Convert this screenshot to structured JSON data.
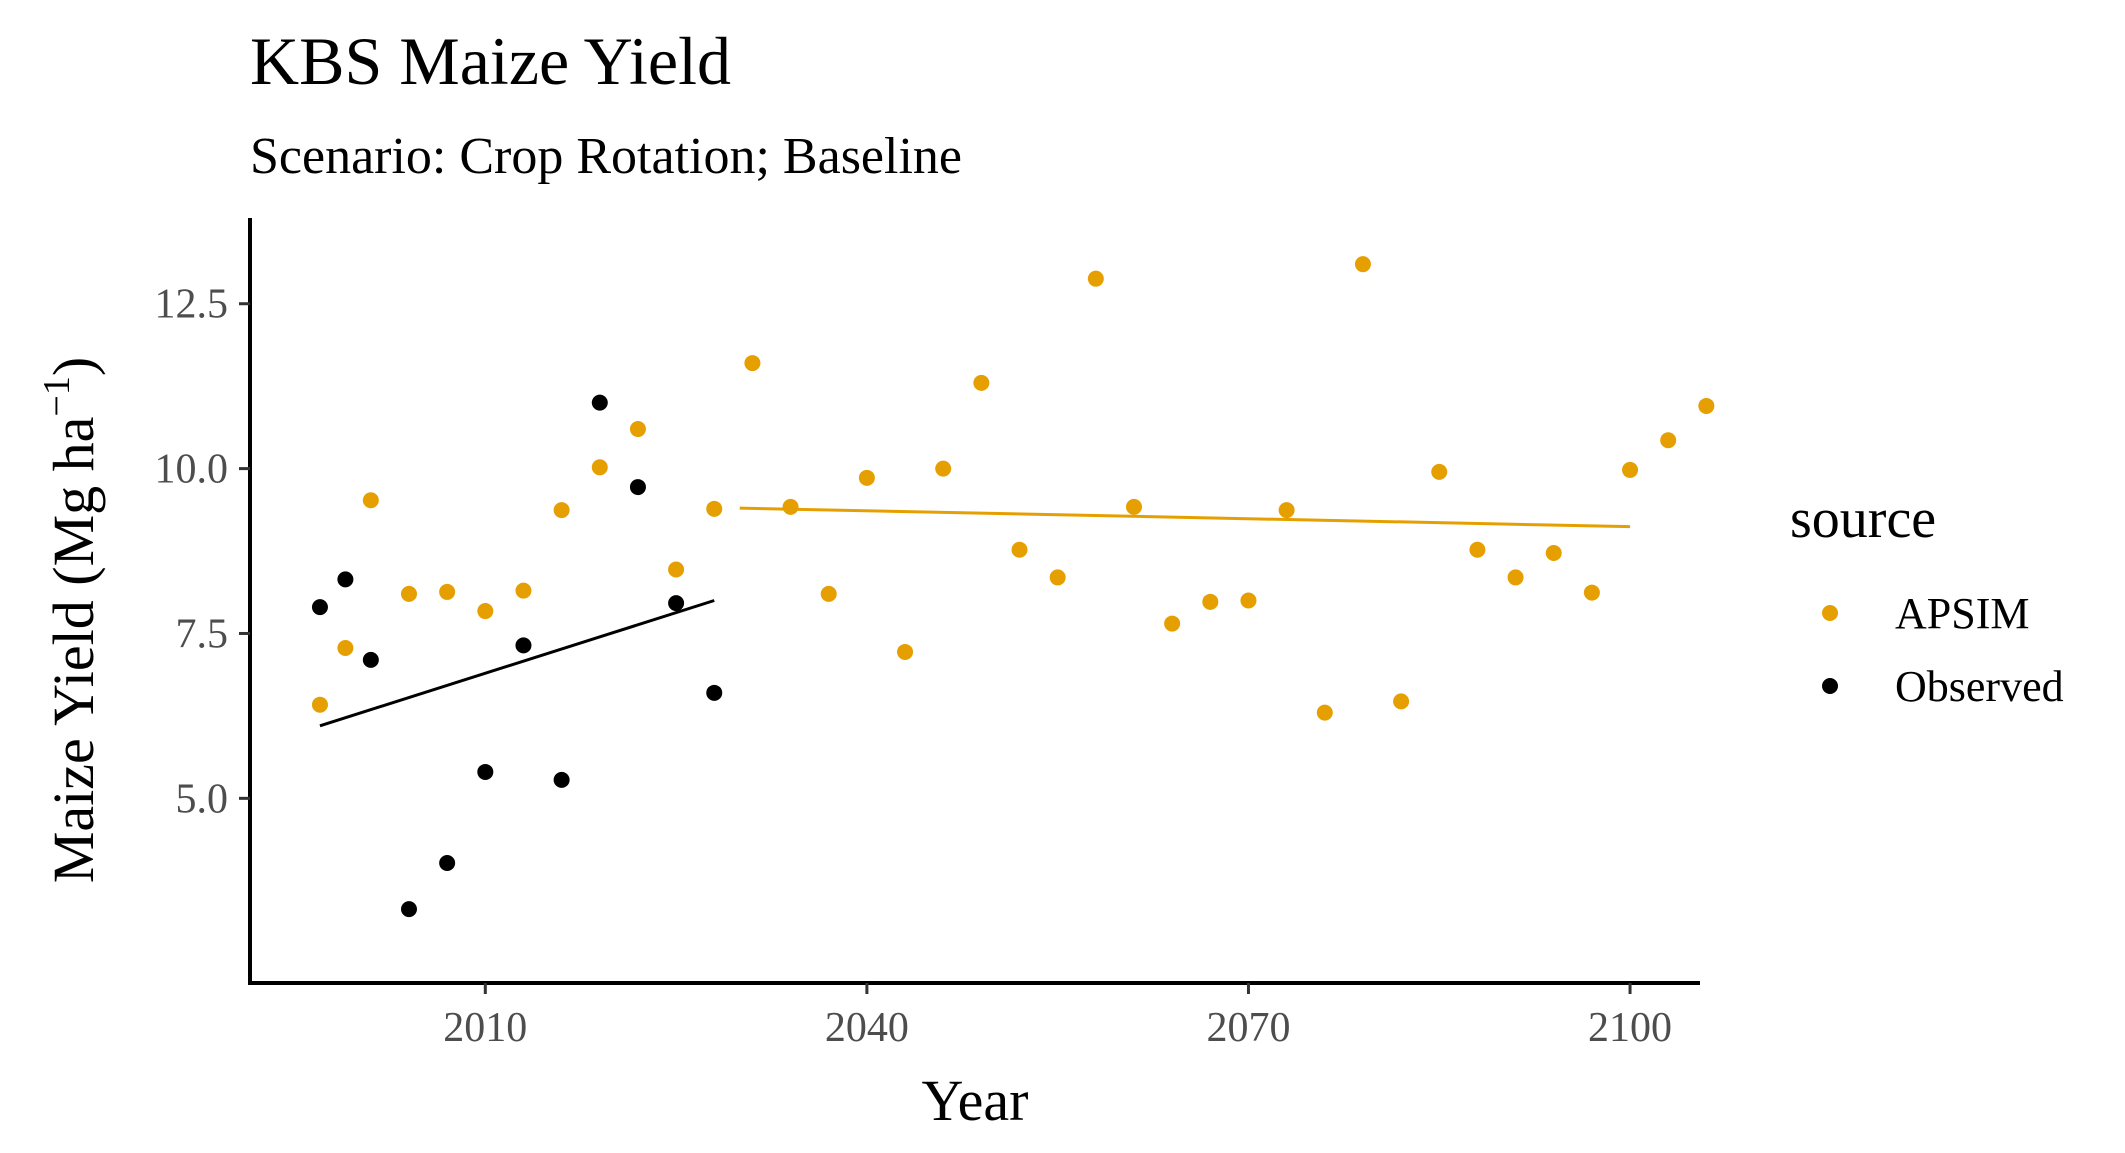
{
  "chart_data": {
    "type": "scatter",
    "title": "KBS Maize Yield",
    "subtitle": "Scenario: Crop Rotation; Baseline",
    "xlabel": "Year",
    "ylabel_main": "Maize Yield (Mg ha",
    "ylabel_sup": "−1",
    "ylabel_close": ")",
    "xlim": [
      1991.5,
      2105.5
    ],
    "ylim": [
      2.2,
      13.8
    ],
    "x_ticks": [
      2010,
      2040,
      2070,
      2100
    ],
    "y_ticks": [
      5.0,
      7.5,
      10.0,
      12.5
    ],
    "y_tick_labels": [
      "5.0",
      "7.5",
      "10.0",
      "12.5"
    ],
    "grid": false,
    "legend": {
      "title": "source",
      "placement": "right"
    },
    "series": [
      {
        "name": "APSIM",
        "color": "#E69F00",
        "points": [
          [
            1997,
            6.42
          ],
          [
            1999,
            7.28
          ],
          [
            2001,
            9.52
          ],
          [
            2004,
            8.1
          ],
          [
            2007,
            8.13
          ],
          [
            2010,
            7.84
          ],
          [
            2013,
            8.15
          ],
          [
            2016,
            9.37
          ],
          [
            2019,
            10.02
          ],
          [
            2022,
            10.6
          ],
          [
            2025,
            8.47
          ],
          [
            2028,
            9.39
          ],
          [
            2031,
            11.6
          ],
          [
            2034,
            9.42
          ],
          [
            2037,
            8.1
          ],
          [
            2040,
            9.86
          ],
          [
            2043,
            7.22
          ],
          [
            2046,
            10.0
          ],
          [
            2049,
            11.3
          ],
          [
            2052,
            8.77
          ],
          [
            2055,
            8.35
          ],
          [
            2058,
            12.88
          ],
          [
            2061,
            9.42
          ],
          [
            2064,
            7.65
          ],
          [
            2067,
            7.98
          ],
          [
            2070,
            8.0
          ],
          [
            2073,
            9.37
          ],
          [
            2076,
            6.3
          ],
          [
            2079,
            13.1
          ],
          [
            2082,
            6.47
          ],
          [
            2085,
            9.95
          ],
          [
            2088,
            8.77
          ],
          [
            2091,
            8.35
          ],
          [
            2094,
            8.72
          ],
          [
            2097,
            8.12
          ],
          [
            2100,
            9.98
          ],
          [
            2103,
            10.43
          ],
          [
            2106,
            10.95
          ]
        ],
        "trend": {
          "x": [
            2030,
            2100
          ],
          "y": [
            9.4,
            9.12
          ]
        }
      },
      {
        "name": "Observed",
        "color": "#000000",
        "points": [
          [
            1997,
            7.9
          ],
          [
            1999,
            8.32
          ],
          [
            2001,
            7.1
          ],
          [
            2004,
            3.32
          ],
          [
            2007,
            4.02
          ],
          [
            2010,
            5.4
          ],
          [
            2013,
            7.32
          ],
          [
            2016,
            5.28
          ],
          [
            2019,
            11.0
          ],
          [
            2022,
            9.72
          ],
          [
            2025,
            7.96
          ],
          [
            2028,
            6.6
          ]
        ],
        "trend": {
          "x": [
            1997,
            2028
          ],
          "y": [
            6.1,
            8.0
          ]
        }
      }
    ]
  }
}
